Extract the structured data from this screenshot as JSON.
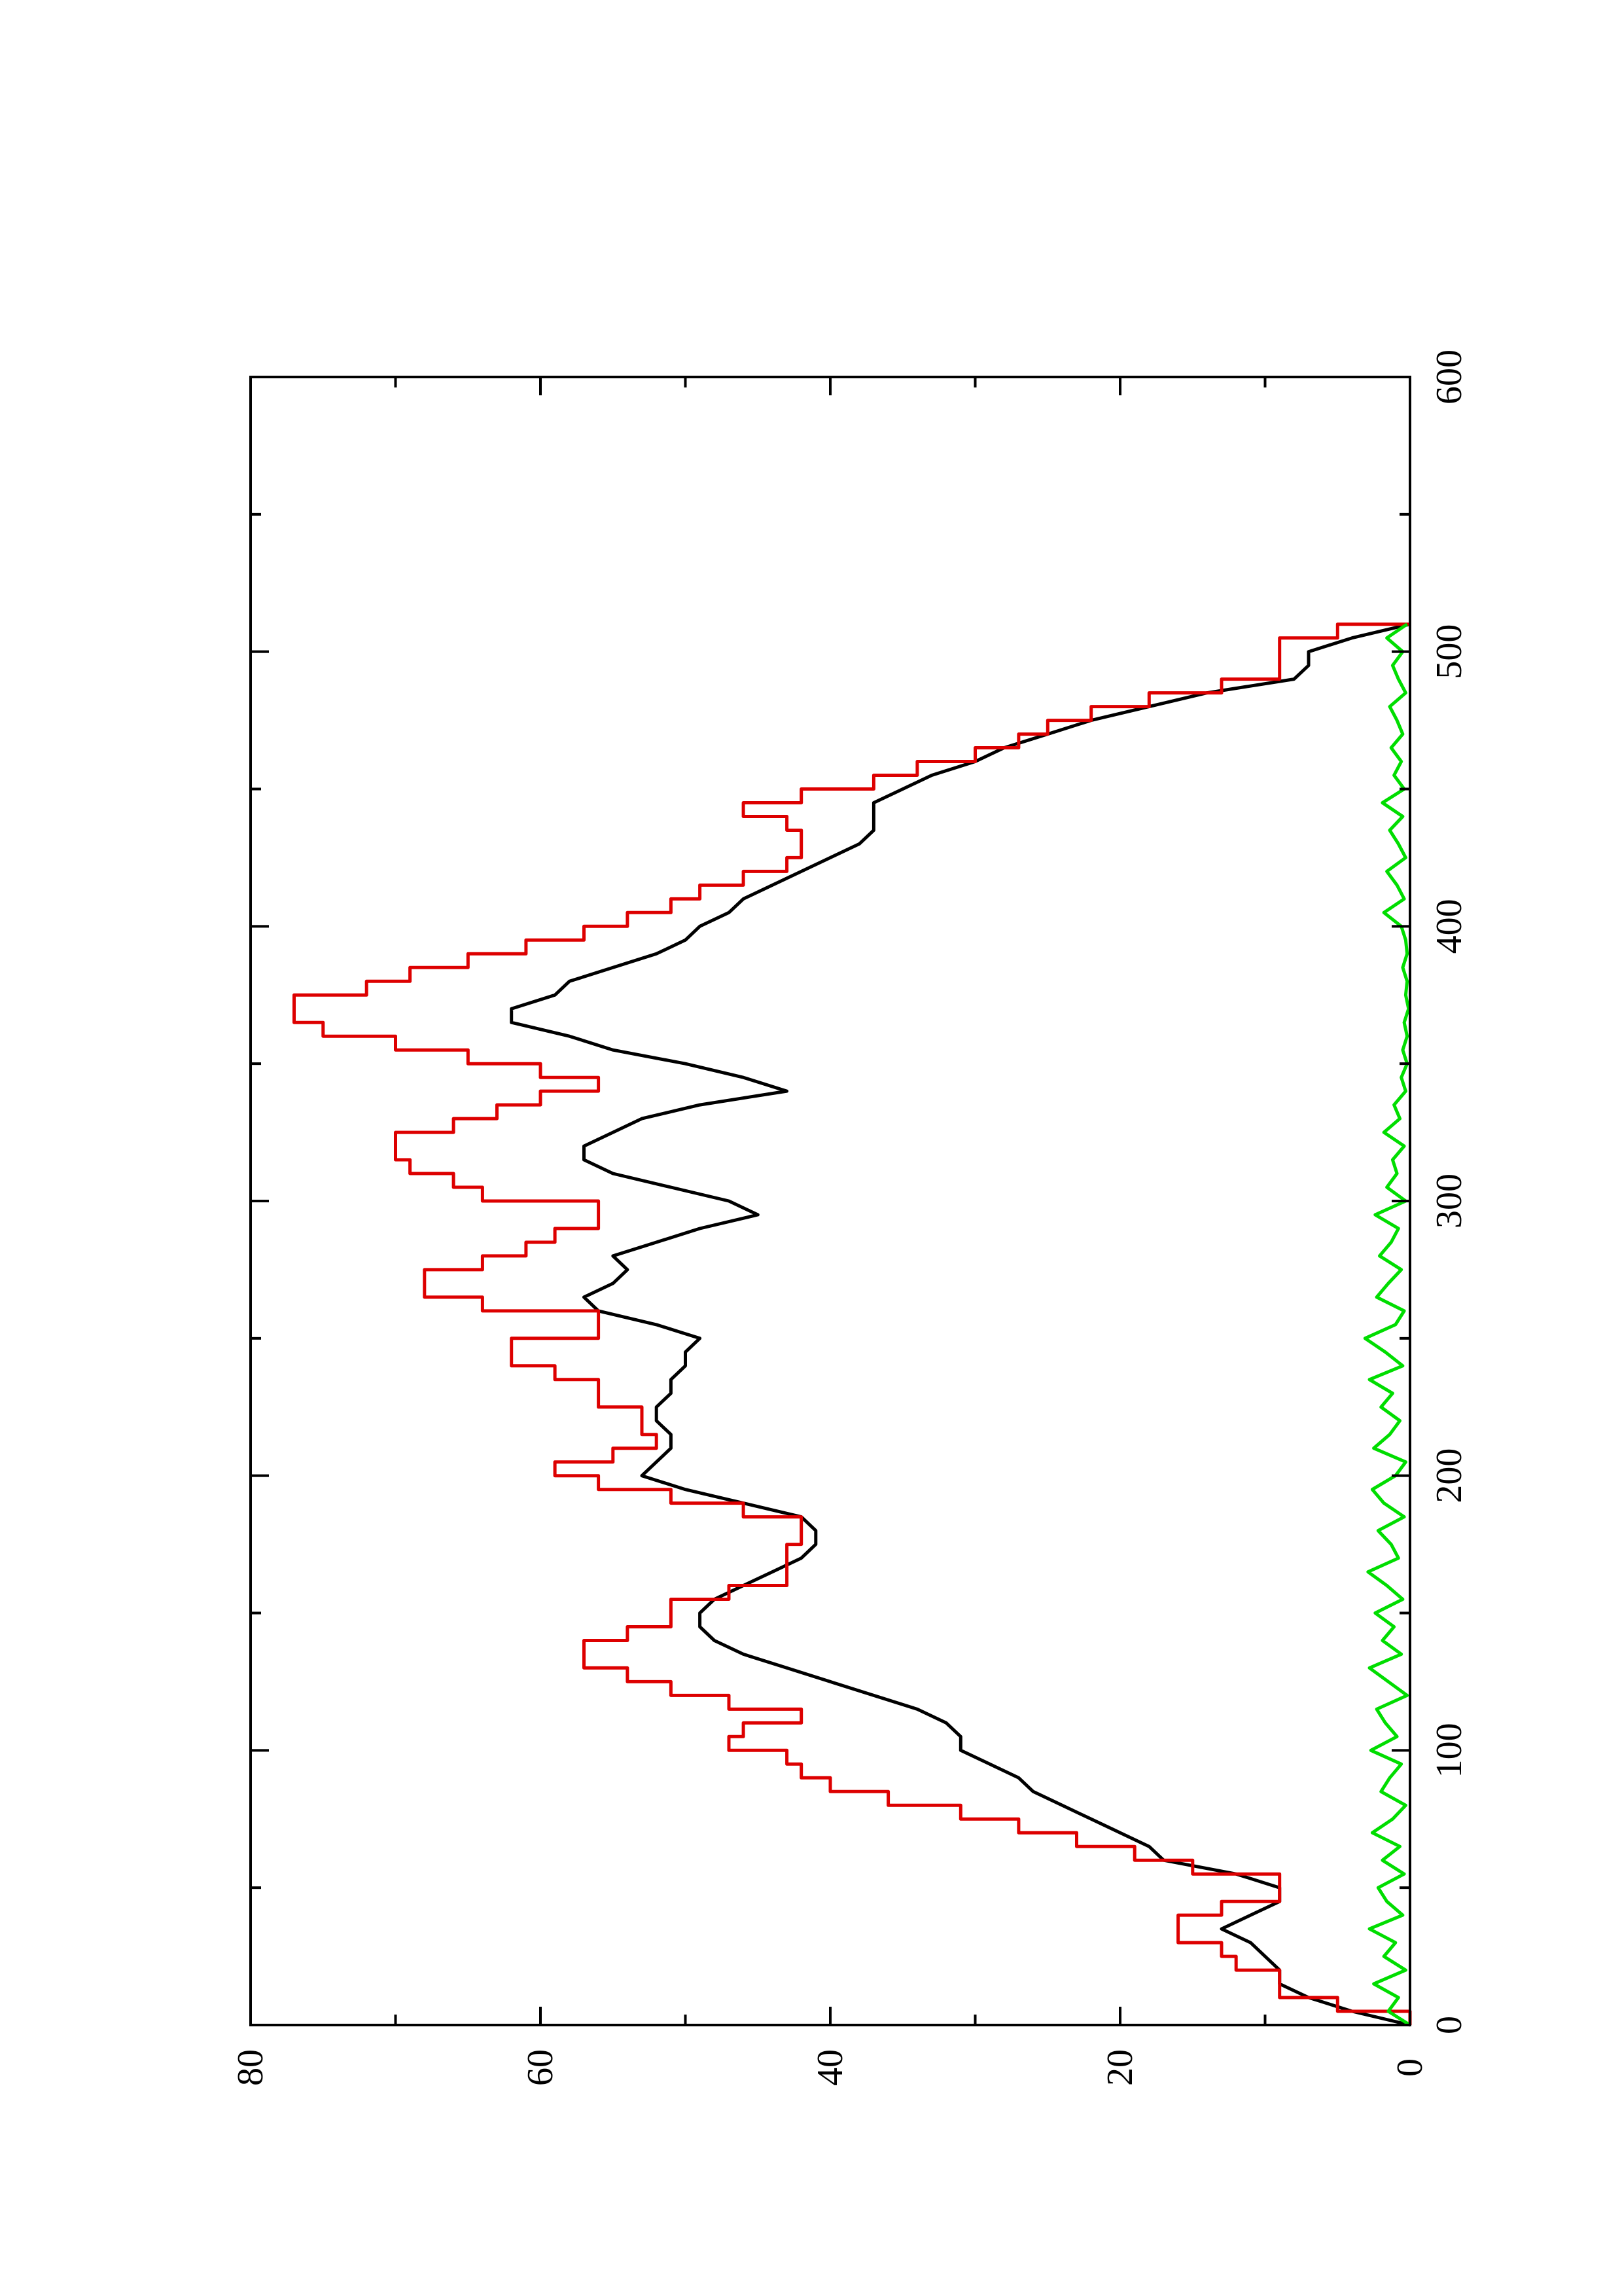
{
  "chart_data": {
    "type": "line",
    "orientation": "rotated 90 degrees counter-clockwise (x axis runs bottom-to-top, y axis runs left-to-right)",
    "xlim": [
      0,
      600
    ],
    "ylim": [
      0,
      80
    ],
    "x_ticks": [
      0,
      100,
      200,
      300,
      400,
      500,
      600
    ],
    "x_tick_labels": [
      "0",
      "100",
      "200",
      "300",
      "400",
      "500",
      "600"
    ],
    "y_ticks": [
      0,
      20,
      40,
      60,
      80
    ],
    "y_tick_labels": [
      "0",
      "20",
      "40",
      "60",
      "80"
    ],
    "grid": false,
    "legend": "none",
    "series": [
      {
        "color": "#000000",
        "style": "line",
        "x": [
          0,
          5,
          10,
          15,
          20,
          25,
          30,
          35,
          40,
          45,
          50,
          55,
          60,
          65,
          70,
          75,
          80,
          85,
          90,
          95,
          100,
          105,
          110,
          115,
          120,
          125,
          130,
          135,
          140,
          145,
          150,
          155,
          160,
          165,
          170,
          175,
          180,
          185,
          190,
          195,
          200,
          205,
          210,
          215,
          220,
          225,
          230,
          235,
          240,
          245,
          250,
          255,
          260,
          265,
          270,
          275,
          280,
          285,
          290,
          295,
          300,
          305,
          310,
          315,
          320,
          325,
          330,
          335,
          340,
          345,
          350,
          355,
          360,
          365,
          370,
          375,
          380,
          385,
          390,
          395,
          400,
          405,
          410,
          415,
          420,
          425,
          430,
          435,
          440,
          445,
          450,
          455,
          460,
          465,
          470,
          475,
          480,
          485,
          490,
          495,
          500,
          505,
          510
        ],
        "y": [
          0,
          4,
          7,
          9,
          9,
          10,
          11,
          13,
          11,
          9,
          9,
          12,
          17,
          18,
          20,
          22,
          24,
          26,
          27,
          29,
          31,
          31,
          32,
          34,
          37,
          40,
          43,
          46,
          48,
          49,
          49,
          48,
          46,
          44,
          42,
          41,
          41,
          42,
          46,
          50,
          53,
          52,
          51,
          51,
          52,
          52,
          51,
          51,
          50,
          50,
          49,
          52,
          56,
          57,
          55,
          54,
          55,
          52,
          49,
          45,
          47,
          51,
          55,
          57,
          57,
          55,
          53,
          49,
          43,
          46,
          50,
          55,
          58,
          62,
          62,
          59,
          58,
          55,
          52,
          50,
          49,
          47,
          46,
          44,
          42,
          40,
          38,
          37,
          37,
          37,
          35,
          33,
          30,
          28,
          25,
          22,
          18,
          14,
          8,
          7,
          7,
          4,
          0
        ]
      },
      {
        "color": "#dd0000",
        "style": "step",
        "x": [
          0,
          5,
          10,
          15,
          20,
          25,
          30,
          35,
          40,
          45,
          50,
          55,
          60,
          65,
          70,
          75,
          80,
          85,
          90,
          95,
          100,
          105,
          110,
          115,
          120,
          125,
          130,
          135,
          140,
          145,
          150,
          155,
          160,
          165,
          170,
          175,
          180,
          185,
          190,
          195,
          200,
          205,
          210,
          215,
          220,
          225,
          230,
          235,
          240,
          245,
          250,
          255,
          260,
          265,
          270,
          275,
          280,
          285,
          290,
          295,
          300,
          305,
          310,
          315,
          320,
          325,
          330,
          335,
          340,
          345,
          350,
          355,
          360,
          365,
          370,
          375,
          380,
          385,
          390,
          395,
          400,
          405,
          410,
          415,
          420,
          425,
          430,
          435,
          440,
          445,
          450,
          455,
          460,
          465,
          470,
          475,
          480,
          485,
          490,
          495,
          500,
          505,
          510
        ],
        "y": [
          0,
          5,
          9,
          9,
          12,
          13,
          16,
          16,
          13,
          9,
          9,
          15,
          19,
          23,
          27,
          31,
          36,
          40,
          42,
          43,
          47,
          46,
          42,
          47,
          51,
          54,
          57,
          57,
          54,
          51,
          51,
          47,
          43,
          43,
          43,
          42,
          42,
          46,
          51,
          56,
          59,
          55,
          52,
          53,
          53,
          56,
          56,
          59,
          62,
          62,
          56,
          56,
          64,
          68,
          68,
          64,
          61,
          59,
          56,
          56,
          64,
          66,
          69,
          70,
          70,
          66,
          63,
          60,
          56,
          60,
          65,
          70,
          75,
          77,
          77,
          72,
          69,
          65,
          61,
          57,
          54,
          51,
          49,
          46,
          43,
          42,
          42,
          43,
          46,
          42,
          37,
          34,
          30,
          27,
          25,
          22,
          18,
          13,
          9,
          9,
          9,
          5,
          0
        ]
      },
      {
        "color": "#00dd00",
        "style": "line",
        "x": [
          0,
          5,
          10,
          15,
          20,
          25,
          30,
          35,
          40,
          45,
          50,
          55,
          60,
          65,
          70,
          75,
          80,
          85,
          90,
          95,
          100,
          105,
          110,
          115,
          120,
          125,
          130,
          135,
          140,
          145,
          150,
          155,
          160,
          165,
          170,
          175,
          180,
          185,
          190,
          195,
          200,
          205,
          210,
          215,
          220,
          225,
          230,
          235,
          240,
          245,
          250,
          255,
          260,
          265,
          270,
          275,
          280,
          285,
          290,
          295,
          300,
          305,
          310,
          315,
          320,
          325,
          330,
          335,
          340,
          345,
          350,
          355,
          360,
          365,
          370,
          375,
          380,
          385,
          390,
          395,
          400,
          405,
          410,
          415,
          420,
          425,
          430,
          435,
          440,
          445,
          450,
          455,
          460,
          465,
          470,
          475,
          480,
          485,
          490,
          495,
          500,
          505,
          510
        ],
        "y": [
          0,
          1.5,
          0.8,
          2.5,
          0.3,
          1.8,
          1.0,
          2.8,
          0.5,
          1.6,
          2.2,
          0.4,
          1.9,
          0.7,
          2.6,
          1.2,
          0.3,
          2.0,
          1.4,
          0.6,
          2.7,
          0.9,
          1.7,
          2.3,
          0.2,
          1.5,
          2.8,
          0.6,
          1.9,
          1.1,
          2.4,
          0.5,
          1.6,
          2.9,
          0.8,
          1.3,
          2.2,
          0.4,
          1.8,
          2.6,
          1.0,
          0.3,
          2.5,
          1.4,
          0.7,
          2.0,
          1.2,
          2.8,
          0.5,
          1.7,
          3.1,
          1.0,
          0.4,
          2.3,
          1.5,
          0.6,
          2.1,
          1.3,
          0.8,
          2.4,
          0.3,
          1.6,
          0.9,
          1.2,
          0.4,
          1.8,
          0.7,
          1.1,
          0.3,
          0.6,
          0.2,
          0.5,
          0.2,
          0.4,
          0.1,
          0.3,
          0.2,
          0.5,
          0.2,
          0.3,
          0.6,
          1.8,
          0.4,
          0.9,
          1.6,
          0.3,
          0.8,
          1.4,
          0.5,
          1.9,
          0.4,
          1.1,
          0.6,
          1.3,
          0.5,
          0.9,
          1.4,
          0.3,
          0.8,
          1.2,
          0.5,
          1.6,
          0.2
        ]
      }
    ]
  }
}
